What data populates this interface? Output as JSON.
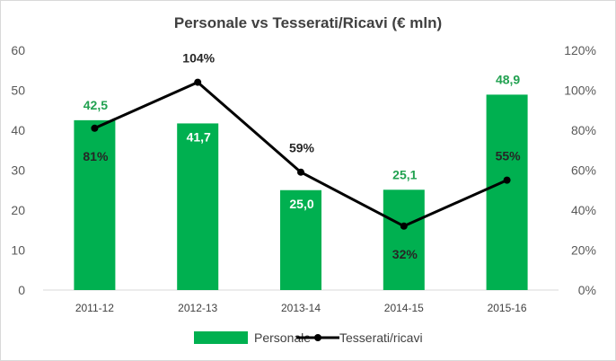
{
  "chart_data": {
    "type": "bar",
    "title": "Personale vs Tesserati/Ricavi (€ mln)",
    "categories": [
      "2011-12",
      "2012-13",
      "2013-14",
      "2014-15",
      "2015-16"
    ],
    "series": [
      {
        "name": "Personale",
        "type": "bar",
        "axis": "left",
        "values": [
          42.5,
          41.7,
          25.0,
          25.1,
          48.9
        ],
        "labels": [
          "42,5",
          "41,7",
          "25,0",
          "25,1",
          "48,9"
        ],
        "label_colors": [
          "#21a150",
          "#ffffff",
          "#ffffff",
          "#21a150",
          "#21a150"
        ],
        "color": "#00b050"
      },
      {
        "name": "Tesserati/ricavi",
        "type": "line",
        "axis": "right",
        "values": [
          81,
          104,
          59,
          32,
          55
        ],
        "labels": [
          "81%",
          "104%",
          "59%",
          "32%",
          "55%"
        ],
        "color": "#000000"
      }
    ],
    "y_left": {
      "ylim": [
        0,
        60
      ],
      "ticks": [
        "0",
        "10",
        "20",
        "30",
        "40",
        "50",
        "60"
      ]
    },
    "y_right": {
      "ylim": [
        0,
        120
      ],
      "ticks": [
        "0%",
        "20%",
        "40%",
        "60%",
        "80%",
        "100%",
        "120%"
      ]
    },
    "grid": false,
    "legend": "bottom"
  }
}
